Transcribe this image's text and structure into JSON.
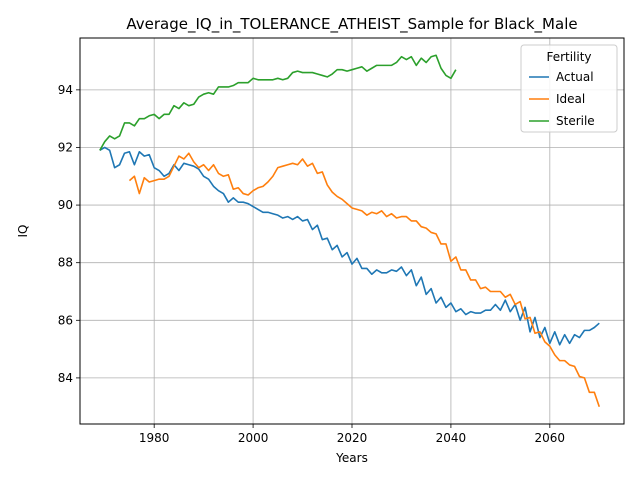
{
  "chart_data": {
    "type": "line",
    "title": "Average_IQ_in_TOLERANCE_ATHEIST_Sample for Black_Male",
    "xlabel": "Years",
    "ylabel": "IQ",
    "xlim": [
      1965,
      2075
    ],
    "ylim": [
      82.4,
      95.8
    ],
    "xticks": [
      1980,
      2000,
      2020,
      2040,
      2060
    ],
    "yticks": [
      84,
      86,
      88,
      90,
      92,
      94
    ],
    "grid": true,
    "legend": {
      "title": "Fertility",
      "position": "top-right"
    },
    "series": [
      {
        "name": "Actual",
        "color": "#1f77b4",
        "x": [
          1969,
          1970,
          1971,
          1972,
          1973,
          1974,
          1975,
          1976,
          1977,
          1978,
          1979,
          1980,
          1981,
          1982,
          1983,
          1984,
          1985,
          1986,
          1987,
          1988,
          1989,
          1990,
          1991,
          1992,
          1993,
          1994,
          1995,
          1996,
          1997,
          1998,
          1999,
          2000,
          2001,
          2002,
          2003,
          2004,
          2005,
          2006,
          2007,
          2008,
          2009,
          2010,
          2011,
          2012,
          2013,
          2014,
          2015,
          2016,
          2017,
          2018,
          2019,
          2020,
          2021,
          2022,
          2023,
          2024,
          2025,
          2026,
          2027,
          2028,
          2029,
          2030,
          2031,
          2032,
          2033,
          2034,
          2035,
          2036,
          2037,
          2038,
          2039,
          2040,
          2041,
          2042,
          2043,
          2044,
          2045,
          2046,
          2047,
          2048,
          2049,
          2050,
          2051,
          2052,
          2053,
          2054,
          2055,
          2056,
          2057,
          2058,
          2059,
          2060,
          2061,
          2062,
          2063,
          2064,
          2065,
          2066,
          2067,
          2068,
          2069,
          2070
        ],
        "values": [
          91.9,
          92.0,
          91.9,
          91.3,
          91.4,
          91.8,
          91.85,
          91.4,
          91.85,
          91.7,
          91.75,
          91.3,
          91.2,
          91.0,
          91.1,
          91.4,
          91.2,
          91.45,
          91.4,
          91.35,
          91.25,
          91.0,
          90.9,
          90.65,
          90.5,
          90.4,
          90.1,
          90.25,
          90.1,
          90.1,
          90.05,
          89.95,
          89.85,
          89.75,
          89.75,
          89.7,
          89.65,
          89.55,
          89.6,
          89.5,
          89.6,
          89.45,
          89.5,
          89.15,
          89.3,
          88.8,
          88.85,
          88.45,
          88.6,
          88.2,
          88.35,
          87.95,
          88.15,
          87.8,
          87.8,
          87.6,
          87.75,
          87.65,
          87.65,
          87.75,
          87.7,
          87.85,
          87.55,
          87.75,
          87.2,
          87.5,
          86.9,
          87.1,
          86.6,
          86.8,
          86.45,
          86.6,
          86.3,
          86.4,
          86.2,
          86.3,
          86.25,
          86.25,
          86.35,
          86.35,
          86.55,
          86.35,
          86.7,
          86.3,
          86.55,
          86.0,
          86.45,
          85.6,
          86.1,
          85.4,
          85.75,
          85.2,
          85.6,
          85.15,
          85.5,
          85.2,
          85.5,
          85.4,
          85.65,
          85.65,
          85.75,
          85.9
        ]
      },
      {
        "name": "Ideal",
        "color": "#ff7f0e",
        "x": [
          1975,
          1976,
          1977,
          1978,
          1979,
          1980,
          1981,
          1982,
          1983,
          1984,
          1985,
          1986,
          1987,
          1988,
          1989,
          1990,
          1991,
          1992,
          1993,
          1994,
          1995,
          1996,
          1997,
          1998,
          1999,
          2000,
          2001,
          2002,
          2003,
          2004,
          2005,
          2006,
          2007,
          2008,
          2009,
          2010,
          2011,
          2012,
          2013,
          2014,
          2015,
          2016,
          2017,
          2018,
          2019,
          2020,
          2021,
          2022,
          2023,
          2024,
          2025,
          2026,
          2027,
          2028,
          2029,
          2030,
          2031,
          2032,
          2033,
          2034,
          2035,
          2036,
          2037,
          2038,
          2039,
          2040,
          2041,
          2042,
          2043,
          2044,
          2045,
          2046,
          2047,
          2048,
          2049,
          2050,
          2051,
          2052,
          2053,
          2054,
          2055,
          2056,
          2057,
          2058,
          2059,
          2060,
          2061,
          2062,
          2063,
          2064,
          2065,
          2066,
          2067,
          2068,
          2069,
          2070
        ],
        "values": [
          90.85,
          91.0,
          90.4,
          90.95,
          90.8,
          90.85,
          90.9,
          90.9,
          91.0,
          91.35,
          91.7,
          91.6,
          91.8,
          91.5,
          91.3,
          91.4,
          91.2,
          91.4,
          91.1,
          91.0,
          91.05,
          90.55,
          90.6,
          90.4,
          90.35,
          90.5,
          90.6,
          90.65,
          90.8,
          91.0,
          91.3,
          91.35,
          91.4,
          91.45,
          91.4,
          91.6,
          91.35,
          91.45,
          91.1,
          91.15,
          90.7,
          90.45,
          90.3,
          90.2,
          90.05,
          89.9,
          89.85,
          89.8,
          89.65,
          89.75,
          89.7,
          89.8,
          89.6,
          89.7,
          89.55,
          89.6,
          89.6,
          89.45,
          89.45,
          89.25,
          89.2,
          89.05,
          89.0,
          88.65,
          88.65,
          88.05,
          88.2,
          87.75,
          87.75,
          87.4,
          87.4,
          87.1,
          87.15,
          87.0,
          87.0,
          87.0,
          86.8,
          86.9,
          86.55,
          86.65,
          86.05,
          86.1,
          85.55,
          85.6,
          85.25,
          85.1,
          84.8,
          84.6,
          84.6,
          84.45,
          84.4,
          84.05,
          84.0,
          83.5,
          83.5,
          83.0
        ]
      },
      {
        "name": "Sterile",
        "color": "#2ca02c",
        "x": [
          1969,
          1970,
          1971,
          1972,
          1973,
          1974,
          1975,
          1976,
          1977,
          1978,
          1979,
          1980,
          1981,
          1982,
          1983,
          1984,
          1985,
          1986,
          1987,
          1988,
          1989,
          1990,
          1991,
          1992,
          1993,
          1994,
          1995,
          1996,
          1997,
          1998,
          1999,
          2000,
          2001,
          2002,
          2003,
          2004,
          2005,
          2006,
          2007,
          2008,
          2009,
          2010,
          2011,
          2012,
          2013,
          2014,
          2015,
          2016,
          2017,
          2018,
          2019,
          2020,
          2021,
          2022,
          2023,
          2024,
          2025,
          2026,
          2027,
          2028,
          2029,
          2030,
          2031,
          2032,
          2033,
          2034,
          2035,
          2036,
          2037,
          2038,
          2039,
          2040,
          2041
        ],
        "values": [
          91.9,
          92.2,
          92.4,
          92.3,
          92.4,
          92.85,
          92.85,
          92.75,
          93.0,
          93.0,
          93.1,
          93.15,
          93.0,
          93.15,
          93.15,
          93.45,
          93.35,
          93.55,
          93.45,
          93.5,
          93.75,
          93.85,
          93.9,
          93.85,
          94.1,
          94.1,
          94.1,
          94.15,
          94.25,
          94.25,
          94.25,
          94.4,
          94.35,
          94.35,
          94.35,
          94.35,
          94.4,
          94.35,
          94.4,
          94.6,
          94.65,
          94.6,
          94.6,
          94.6,
          94.55,
          94.5,
          94.45,
          94.55,
          94.7,
          94.7,
          94.65,
          94.7,
          94.75,
          94.8,
          94.65,
          94.75,
          94.85,
          94.85,
          94.85,
          94.85,
          94.95,
          95.15,
          95.05,
          95.15,
          94.85,
          95.1,
          94.95,
          95.15,
          95.2,
          94.75,
          94.5,
          94.4,
          94.7
        ]
      }
    ]
  }
}
